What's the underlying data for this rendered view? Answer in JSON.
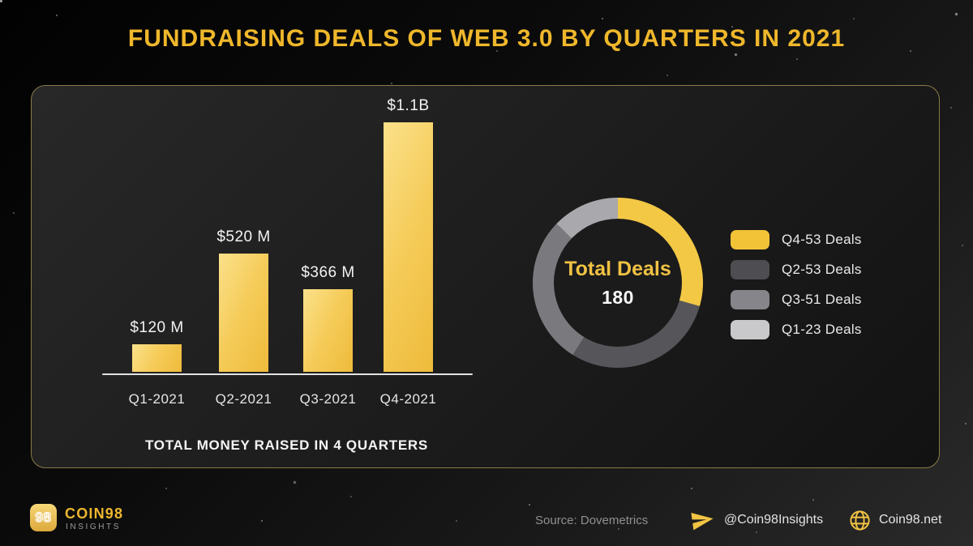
{
  "title": "FUNDRAISING DEALS OF WEB 3.0 BY QUARTERS IN 2021",
  "chart_data": [
    {
      "type": "bar",
      "title": "TOTAL MONEY RAISED IN 4 QUARTERS",
      "categories": [
        "Q1-2021",
        "Q2-2021",
        "Q3-2021",
        "Q4-2021"
      ],
      "values": [
        120,
        520,
        366,
        1100
      ],
      "value_labels": [
        "$120 M",
        "$520 M",
        "$366 M",
        "$1.1B"
      ],
      "unit": "USD million",
      "ylim": [
        0,
        1100
      ],
      "grid": false,
      "bar_gradient": [
        "#FBE18A",
        "#F5CB58",
        "#EEBB3B"
      ],
      "axis_color": "#E3E3E3"
    },
    {
      "type": "donut",
      "center_label": "Total Deals",
      "center_value": "180",
      "total_deals": 180,
      "start_angle_deg": 0,
      "legend_position": "right",
      "segments": [
        {
          "label": "Q4-53 Deals",
          "quarter": "Q4",
          "deals": 53,
          "color": "#F3C845",
          "legend_color": "#F2C337"
        },
        {
          "label": "Q2-53 Deals",
          "quarter": "Q2",
          "deals": 53,
          "color": "#56565A",
          "legend_color": "#4D4D52"
        },
        {
          "label": "Q3-51 Deals",
          "quarter": "Q3",
          "deals": 51,
          "color": "#7A7A7E",
          "legend_color": "#85858A"
        },
        {
          "label": "Q1-23 Deals",
          "quarter": "Q1",
          "deals": 23,
          "color": "#A9A9AD",
          "legend_color": "#C9C9CB"
        }
      ]
    }
  ],
  "footer": {
    "logo_text": "98",
    "brand_name": "COIN98",
    "brand_sub": "INSIGHTS",
    "source": "Source: Dovemetrics",
    "telegram_handle": "@Coin98Insights",
    "website": "Coin98.net"
  },
  "colors": {
    "accent_gold": "#EFB72B",
    "panel_border": "#8A7A48",
    "text_light": "#EAEAEA",
    "text_gray": "#909090"
  }
}
